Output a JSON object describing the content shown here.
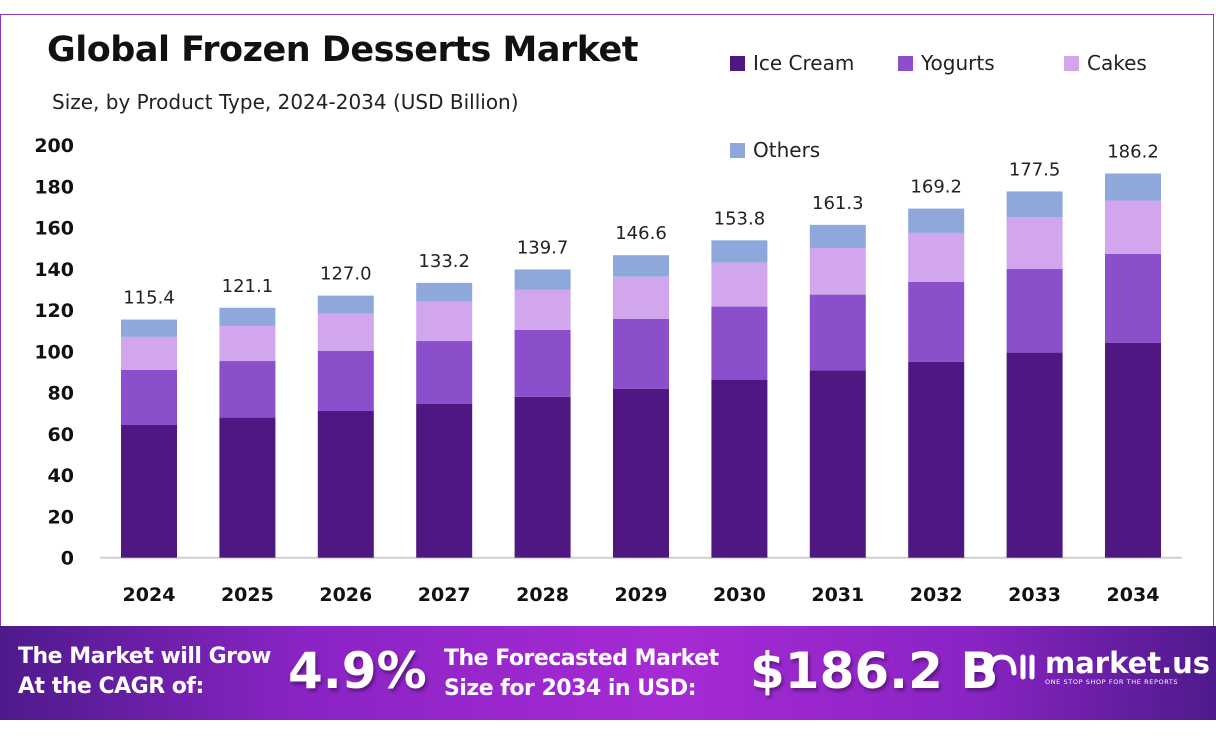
{
  "title": "Global Frozen Desserts Market",
  "subtitle": "Size, by Product Type, 2024-2034 (USD Billion)",
  "colors": {
    "ice_cream": "#4f1782",
    "yogurts": "#8b4fcc",
    "cakes": "#d1a6ec",
    "others": "#8ea8dc",
    "banner": "#a62ad4"
  },
  "chart_data": {
    "type": "bar",
    "stacked": true,
    "title": "Global Frozen Desserts Market",
    "subtitle": "Size, by Product Type, 2024-2034 (USD Billion)",
    "categories": [
      "2024",
      "2025",
      "2026",
      "2027",
      "2028",
      "2029",
      "2030",
      "2031",
      "2032",
      "2033",
      "2034"
    ],
    "series": [
      {
        "name": "Ice Cream",
        "color": "#4f1782",
        "values": [
          64.3,
          67.9,
          71.1,
          74.5,
          78.0,
          81.9,
          86.3,
          90.7,
          95.0,
          99.4,
          104.2
        ]
      },
      {
        "name": "Yogurts",
        "color": "#8b4fcc",
        "values": [
          26.7,
          27.4,
          29.2,
          30.5,
          32.4,
          33.8,
          35.4,
          36.8,
          38.6,
          40.5,
          43.0
        ]
      },
      {
        "name": "Cakes",
        "color": "#d1a6ec",
        "values": [
          16.0,
          17.0,
          18.0,
          19.1,
          19.4,
          20.5,
          21.3,
          22.6,
          23.8,
          25.2,
          25.9
        ]
      },
      {
        "name": "Others",
        "color": "#8ea8dc",
        "values": [
          8.4,
          8.8,
          8.7,
          9.1,
          9.9,
          10.4,
          10.8,
          11.2,
          11.8,
          12.4,
          13.1
        ]
      }
    ],
    "totals": [
      "115.4",
      "121.1",
      "127.0",
      "133.2",
      "139.7",
      "146.6",
      "153.8",
      "161.3",
      "169.2",
      "177.5",
      "186.2"
    ],
    "yticks": [
      "0",
      "20",
      "40",
      "60",
      "80",
      "100",
      "120",
      "140",
      "160",
      "180",
      "200"
    ],
    "ylim": [
      0,
      200
    ],
    "grid": false,
    "legend_position": "top-right",
    "xlabel": "",
    "ylabel": ""
  },
  "banner": {
    "cagr_label_1": "The Market will Grow",
    "cagr_label_2": "At the CAGR of:",
    "cagr_value": "4.9%",
    "forecast_label_1": "The Forecasted Market",
    "forecast_label_2": "Size for 2034 in USD:",
    "forecast_value": "$186.2 B",
    "logo_name": "market.us",
    "logo_tagline": "ONE STOP SHOP FOR THE REPORTS"
  }
}
